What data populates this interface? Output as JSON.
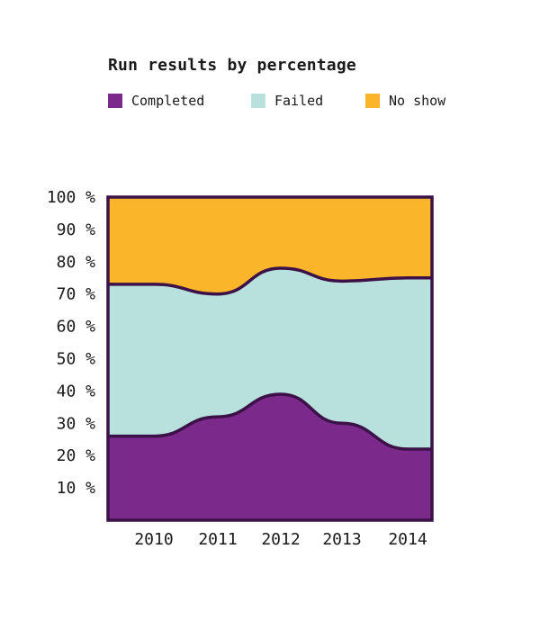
{
  "chart_data": {
    "type": "area",
    "stacked": true,
    "normalized": true,
    "title": "Run results by percentage",
    "categories": [
      "2010",
      "2011",
      "2012",
      "2013",
      "2014"
    ],
    "series": [
      {
        "name": "Completed",
        "color": "#7b2a8b",
        "values": [
          26,
          32,
          39,
          30,
          22
        ]
      },
      {
        "name": "Failed",
        "color": "#b8e0dd",
        "values": [
          47,
          38,
          39,
          44,
          53
        ]
      },
      {
        "name": "No show",
        "color": "#fbb52b",
        "values": [
          27,
          30,
          22,
          26,
          25
        ]
      }
    ],
    "y_ticks": [
      "10 %",
      "20 %",
      "30 %",
      "40 %",
      "50 %",
      "60 %",
      "70 %",
      "80 %",
      "90 %",
      "100 %"
    ],
    "ylim": [
      0,
      100
    ],
    "grid": false,
    "legend_position": "top-left",
    "outline_color": "#3b1147"
  }
}
